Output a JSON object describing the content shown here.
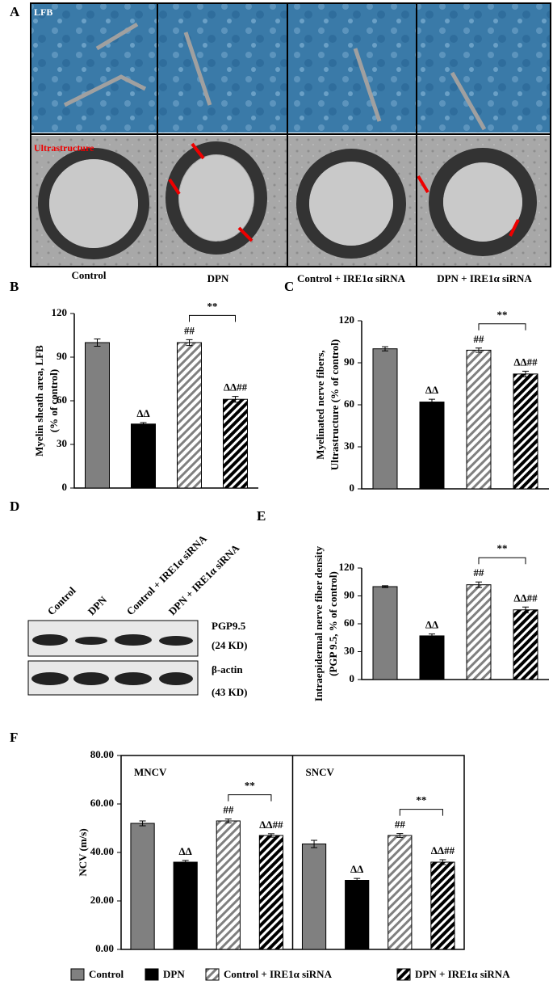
{
  "figure_a": {
    "panel_label": "A",
    "row_labels": [
      "LFB",
      "Ultrastructure"
    ],
    "column_labels": [
      "Control",
      "DPN",
      "Control + IRE1α siRNA",
      "DPN + IRE1α siRNA"
    ]
  },
  "blot": {
    "panel_label": "D",
    "lane_labels": [
      "Control",
      "DPN",
      "Control + IRE1α siRNA",
      "DPN + IRE1α siRNA"
    ],
    "bands": [
      {
        "name": "PGP9.5",
        "size": "(24 KD)"
      },
      {
        "name": "β-actin",
        "size": "(43 KD)"
      }
    ]
  },
  "legend": {
    "items": [
      {
        "name": "Control",
        "color": "#808080",
        "hatch": false
      },
      {
        "name": "DPN",
        "color": "#000000",
        "hatch": false
      },
      {
        "name": "Control + IRE1α siRNA",
        "color": "#808080",
        "hatch": true
      },
      {
        "name": "DPN + IRE1α siRNA",
        "color": "#000000",
        "hatch": true
      }
    ]
  },
  "chart_data": [
    {
      "type": "bar",
      "panel_label": "B",
      "ylabel": [
        "Myelin sheath area, LFB",
        "(% of control)"
      ],
      "ylim": [
        0,
        120
      ],
      "yticks": [
        0,
        30,
        60,
        90,
        120
      ],
      "groups": [
        {
          "values": [
            100,
            44,
            100,
            61
          ],
          "errors": [
            2.5,
            1,
            2,
            2
          ],
          "annotations": [
            null,
            "ΔΔ",
            "##",
            "ΔΔ##"
          ],
          "bracket_label": "**"
        }
      ]
    },
    {
      "type": "bar",
      "panel_label": "C",
      "ylabel": [
        "Myelinated  nerve fibers,",
        "Ultrastructure  (% of control)"
      ],
      "ylim": [
        0,
        120
      ],
      "yticks": [
        0,
        30,
        60,
        90,
        120
      ],
      "groups": [
        {
          "values": [
            100,
            62,
            99,
            82
          ],
          "errors": [
            1.5,
            2,
            1.5,
            2
          ],
          "annotations": [
            null,
            "ΔΔ",
            "##",
            "ΔΔ##"
          ],
          "bracket_label": "**"
        }
      ]
    },
    {
      "type": "bar",
      "panel_label": "E",
      "ylabel": [
        "Intraepidermal nerve fiber density",
        "(PGP 9.5, % of control)"
      ],
      "ylim": [
        0,
        120
      ],
      "yticks": [
        0,
        30,
        60,
        90,
        120
      ],
      "groups": [
        {
          "values": [
            100,
            47,
            102,
            75
          ],
          "errors": [
            1,
            2,
            3,
            3
          ],
          "annotations": [
            null,
            "ΔΔ",
            "##",
            "ΔΔ##"
          ],
          "bracket_label": "**"
        }
      ]
    },
    {
      "type": "bar",
      "panel_label": "F",
      "ylabel": [
        "NCV (m/s)"
      ],
      "ylim": [
        0,
        80
      ],
      "box": true,
      "yticks": [
        {
          "value": 0,
          "label": "0.00"
        },
        {
          "value": 20,
          "label": "20.00"
        },
        {
          "value": 40,
          "label": "40.00"
        },
        {
          "value": 60,
          "label": "60.00"
        },
        {
          "value": 80,
          "label": "80.00"
        }
      ],
      "groups": [
        {
          "name": "MNCV",
          "values": [
            52,
            36,
            53,
            47
          ],
          "errors": [
            1,
            0.7,
            0.8,
            0.7
          ],
          "annotations": [
            null,
            "ΔΔ",
            "##",
            "ΔΔ##"
          ],
          "bracket_label": "**"
        },
        {
          "name": "SNCV",
          "values": [
            43.5,
            28.5,
            47,
            36
          ],
          "errors": [
            1.5,
            0.8,
            0.8,
            1
          ],
          "annotations": [
            null,
            "ΔΔ",
            "##",
            "ΔΔ##"
          ],
          "bracket_label": "**"
        }
      ]
    }
  ]
}
